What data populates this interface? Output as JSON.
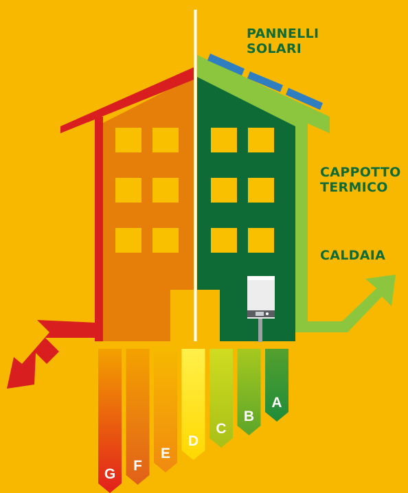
{
  "labels": {
    "solar_panels": "PANNELLI\nSOLARI",
    "insulation": "CAPPOTTO\nTERMICO",
    "boiler": "CALDAIA"
  },
  "energy_classes": [
    {
      "letter": "G",
      "top": "#F2A100",
      "bottom": "#E2201C"
    },
    {
      "letter": "F",
      "top": "#F4A200",
      "bottom": "#E0601A"
    },
    {
      "letter": "E",
      "top": "#F7B800",
      "bottom": "#F08A10"
    },
    {
      "letter": "D",
      "top": "#FFF04A",
      "bottom": "#FFD800"
    },
    {
      "letter": "C",
      "top": "#CFDC20",
      "bottom": "#A8C018"
    },
    {
      "letter": "B",
      "top": "#A6C81E",
      "bottom": "#5CA62A"
    },
    {
      "letter": "A",
      "top": "#55A02E",
      "bottom": "#1E8C3A"
    }
  ],
  "colors": {
    "background": "#F9B800",
    "old_building": "#E67E0A",
    "old_roof": "#D81E1E",
    "new_building": "#0E6B35",
    "insulation": "#8CC63E",
    "window": "#F9C000",
    "solar_panel": "#2F7FC0",
    "divider": "#FFFFFF"
  },
  "icons": [
    "arrow-down-left-icon",
    "arrow-up-right-icon",
    "boiler-icon",
    "solar-panel-icon"
  ]
}
